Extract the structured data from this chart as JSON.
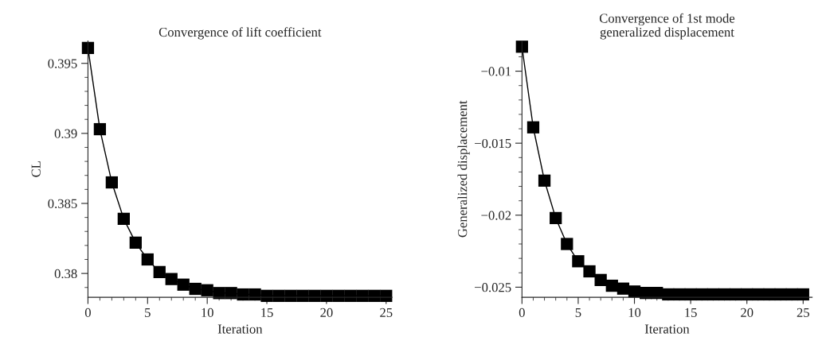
{
  "chart_data": [
    {
      "type": "line",
      "title": "Convergence of lift coefficient",
      "xlabel": "Iteration",
      "ylabel": "CL",
      "marker": "square",
      "line_style": "solid",
      "grid": false,
      "x": [
        0,
        1,
        2,
        3,
        4,
        5,
        6,
        7,
        8,
        9,
        10,
        11,
        12,
        13,
        14,
        15,
        16,
        17,
        18,
        19,
        20,
        21,
        22,
        23,
        24,
        25
      ],
      "series": [
        {
          "color": "#000000",
          "values": [
            0.3961,
            0.3903,
            0.3865,
            0.3839,
            0.3822,
            0.381,
            0.3801,
            0.3796,
            0.3792,
            0.3789,
            0.3788,
            0.3786,
            0.3786,
            0.3785,
            0.3785,
            0.3784,
            0.3784,
            0.3784,
            0.3784,
            0.3784,
            0.3784,
            0.3784,
            0.3784,
            0.3784,
            0.3784,
            0.3784
          ]
        }
      ],
      "xlim": [
        0,
        25.5
      ],
      "xticks": [
        0,
        5,
        10,
        15,
        20,
        25
      ],
      "ylim": [
        0.3783,
        0.3966
      ],
      "yticks": [
        0.38,
        0.385,
        0.39,
        0.395
      ]
    },
    {
      "type": "line",
      "title": "Convergence of 1st mode\ngeneralized displacement",
      "xlabel": "Iteration",
      "ylabel": "Generalized displacement",
      "marker": "square",
      "line_style": "solid",
      "grid": false,
      "x": [
        0,
        1,
        2,
        3,
        4,
        5,
        6,
        7,
        8,
        9,
        10,
        11,
        12,
        13,
        14,
        15,
        16,
        17,
        18,
        19,
        20,
        21,
        22,
        23,
        24,
        25
      ],
      "series": [
        {
          "color": "#000000",
          "values": [
            -0.0083,
            -0.0139,
            -0.0176,
            -0.0202,
            -0.022,
            -0.0232,
            -0.0239,
            -0.0245,
            -0.0249,
            -0.0251,
            -0.0253,
            -0.0254,
            -0.0254,
            -0.0255,
            -0.0255,
            -0.0255,
            -0.0255,
            -0.0255,
            -0.0255,
            -0.0255,
            -0.0255,
            -0.0255,
            -0.0255,
            -0.0255,
            -0.0255,
            -0.0255
          ]
        }
      ],
      "xlim": [
        0,
        25.8
      ],
      "xticks": [
        0,
        5,
        10,
        15,
        20,
        25
      ],
      "ylim": [
        -0.0257,
        -0.0079
      ],
      "yticks": [
        {
          "value": -0.025,
          "label": "−0.025"
        },
        {
          "value": -0.02,
          "label": "−0.02"
        },
        {
          "value": -0.015,
          "label": "−0.015"
        },
        {
          "value": -0.01,
          "label": "−0.01"
        }
      ]
    }
  ]
}
